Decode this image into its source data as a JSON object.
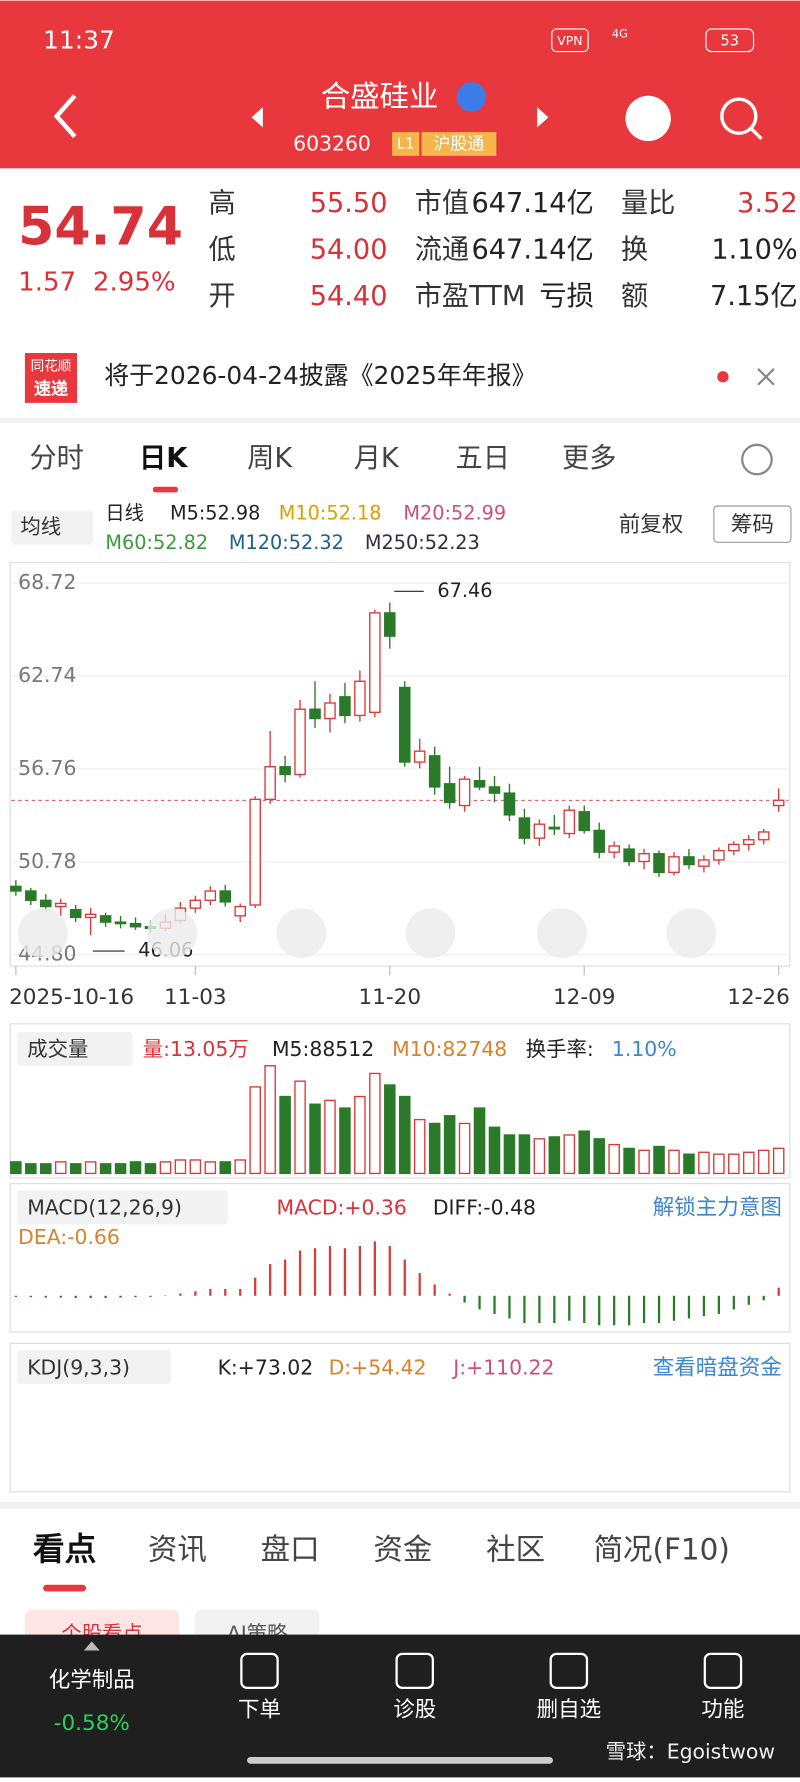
{
  "status": {
    "time": "11:37",
    "vpn": "VPN",
    "network": "4G",
    "battery": "53"
  },
  "header": {
    "title": "合盛硅业",
    "code": "603260",
    "level": "L1",
    "tag": "沪股通"
  },
  "quote": {
    "price": "54.74",
    "change": "1.57",
    "pct": "2.95%",
    "stats": [
      {
        "label": "高",
        "value": "55.50"
      },
      {
        "label": "低",
        "value": "54.00"
      },
      {
        "label": "开",
        "value": "54.40"
      },
      {
        "label": "市值",
        "value": "647.14亿"
      },
      {
        "label": "流通",
        "value": "647.14亿"
      },
      {
        "label": "市盈TTM",
        "value": "亏损"
      },
      {
        "label": "量比",
        "value": "3.52"
      },
      {
        "label": "换",
        "value": "1.10%"
      },
      {
        "label": "额",
        "value": "7.15亿"
      }
    ]
  },
  "banner": {
    "brand_top": "同花顺",
    "brand_bottom": "速递",
    "text": "将于2026-04-24披露《2025年年报》"
  },
  "tabs": [
    "分时",
    "日K",
    "周K",
    "月K",
    "五日",
    "更多"
  ],
  "ma_legend": {
    "selector": "均线",
    "items": [
      "日线",
      "M5:52.98",
      "M10:52.18",
      "M20:52.99",
      "M60:52.82",
      "M120:52.32",
      "M250:52.23"
    ],
    "adjust": "前复权",
    "chips": "筹码"
  },
  "chart_data": {
    "type": "candlestick",
    "ylim": [
      44.8,
      68.72
    ],
    "yticks": [
      {
        "value": 68.72,
        "label": "68.72"
      },
      {
        "value": 62.74,
        "label": "62.74"
      },
      {
        "value": 56.76,
        "label": "56.76"
      },
      {
        "value": 50.78,
        "label": "50.78"
      },
      {
        "value": 44.8,
        "label": "44.80"
      }
    ],
    "x_labels": [
      {
        "index": 0,
        "label": "2025-10-16"
      },
      {
        "index": 12,
        "label": "11-03"
      },
      {
        "index": 25,
        "label": "11-20"
      },
      {
        "index": 38,
        "label": "12-09"
      },
      {
        "index": 51,
        "label": "12-26"
      }
    ],
    "max_label": {
      "index": 25,
      "value": 67.46,
      "label": "67.46"
    },
    "min_label": {
      "index": 5,
      "value": 46.06,
      "label": "46.06"
    },
    "last_price": 54.74,
    "ohlc": [
      [
        49.2,
        49.6,
        48.6,
        48.9
      ],
      [
        48.9,
        49.1,
        48.0,
        48.3
      ],
      [
        48.3,
        48.7,
        47.6,
        47.9
      ],
      [
        47.9,
        48.4,
        47.3,
        48.1
      ],
      [
        47.7,
        48.0,
        46.9,
        47.2
      ],
      [
        47.2,
        47.8,
        46.06,
        47.4
      ],
      [
        47.3,
        47.5,
        46.6,
        46.9
      ],
      [
        46.9,
        47.3,
        46.5,
        46.8
      ],
      [
        46.8,
        47.2,
        46.4,
        46.6
      ],
      [
        46.6,
        47.0,
        46.2,
        46.5
      ],
      [
        46.5,
        47.4,
        46.3,
        46.9
      ],
      [
        47.0,
        48.2,
        46.8,
        47.8
      ],
      [
        47.8,
        48.6,
        47.5,
        48.3
      ],
      [
        48.3,
        49.2,
        48.0,
        48.9
      ],
      [
        48.9,
        49.3,
        47.9,
        48.2
      ],
      [
        47.3,
        48.1,
        46.9,
        47.9
      ],
      [
        48.0,
        55.0,
        47.8,
        54.8
      ],
      [
        54.8,
        59.2,
        54.5,
        56.9
      ],
      [
        56.9,
        57.6,
        55.9,
        56.4
      ],
      [
        56.4,
        61.2,
        56.2,
        60.6
      ],
      [
        60.6,
        62.4,
        59.4,
        60.0
      ],
      [
        60.0,
        61.6,
        59.1,
        61.0
      ],
      [
        61.4,
        62.3,
        59.7,
        60.2
      ],
      [
        60.2,
        63.1,
        59.8,
        62.4
      ],
      [
        60.4,
        67.0,
        60.1,
        66.8
      ],
      [
        66.8,
        67.46,
        64.5,
        65.3
      ],
      [
        62.0,
        62.4,
        56.9,
        57.2
      ],
      [
        57.2,
        58.7,
        56.8,
        57.9
      ],
      [
        57.6,
        58.2,
        55.1,
        55.6
      ],
      [
        55.8,
        56.9,
        54.2,
        54.6
      ],
      [
        54.4,
        56.3,
        54.0,
        56.1
      ],
      [
        56.0,
        56.9,
        55.4,
        55.6
      ],
      [
        55.6,
        56.3,
        54.6,
        55.2
      ],
      [
        55.2,
        55.8,
        53.4,
        53.8
      ],
      [
        53.6,
        54.2,
        51.9,
        52.3
      ],
      [
        52.3,
        53.5,
        51.8,
        53.2
      ],
      [
        53.0,
        53.8,
        52.5,
        52.9
      ],
      [
        52.6,
        54.4,
        52.3,
        54.1
      ],
      [
        54.0,
        54.4,
        52.6,
        52.8
      ],
      [
        52.8,
        53.3,
        51.0,
        51.4
      ],
      [
        51.4,
        52.1,
        51.0,
        51.8
      ],
      [
        51.6,
        51.9,
        50.5,
        50.8
      ],
      [
        50.8,
        51.6,
        50.3,
        51.3
      ],
      [
        51.3,
        51.5,
        49.8,
        50.1
      ],
      [
        50.1,
        51.4,
        49.9,
        51.1
      ],
      [
        51.1,
        51.6,
        50.3,
        50.6
      ],
      [
        50.5,
        51.2,
        50.1,
        50.9
      ],
      [
        50.9,
        51.7,
        50.6,
        51.5
      ],
      [
        51.5,
        52.1,
        51.2,
        51.9
      ],
      [
        51.9,
        52.5,
        51.5,
        52.2
      ],
      [
        52.2,
        52.9,
        51.9,
        52.7
      ],
      [
        54.4,
        55.5,
        54.0,
        54.74
      ]
    ],
    "volume": {
      "selector": "成交量",
      "current": "量:13.05万",
      "m5": "M5:88512",
      "m10": "M10:82748",
      "turnover_label": "换手率:",
      "turnover": "1.10%",
      "values": [
        6,
        5,
        5,
        6,
        5,
        6,
        5,
        5,
        6,
        5,
        6,
        7,
        7,
        6,
        6,
        7,
        45,
        56,
        40,
        48,
        36,
        38,
        34,
        40,
        52,
        46,
        40,
        28,
        26,
        30,
        26,
        34,
        24,
        20,
        20,
        18,
        19,
        20,
        22,
        18,
        15,
        13,
        12,
        14,
        12,
        10,
        11,
        10,
        10,
        11,
        12,
        13.05
      ]
    },
    "macd": {
      "selector": "MACD(12,26,9)",
      "macd": "MACD:+0.36",
      "diff": "DIFF:-0.48",
      "dea": "DEA:-0.66",
      "link": "解锁主力意图",
      "values": [
        -0.05,
        -0.06,
        -0.08,
        -0.08,
        -0.1,
        -0.1,
        -0.1,
        -0.08,
        -0.06,
        -0.05,
        0.02,
        0.1,
        0.2,
        0.3,
        0.3,
        0.3,
        0.8,
        1.4,
        1.6,
        2.0,
        2.1,
        2.2,
        2.1,
        2.2,
        2.4,
        2.2,
        1.6,
        1.0,
        0.5,
        0.1,
        -0.3,
        -0.6,
        -0.8,
        -1.0,
        -1.2,
        -1.2,
        -1.2,
        -1.1,
        -1.2,
        -1.3,
        -1.3,
        -1.3,
        -1.2,
        -1.2,
        -1.1,
        -1.0,
        -0.9,
        -0.8,
        -0.6,
        -0.4,
        -0.2,
        0.36
      ]
    },
    "kdj": {
      "selector": "KDJ(9,3,3)",
      "k": "K:+73.02",
      "d": "D:+54.42",
      "j": "J:+110.22",
      "link": "查看暗盘资金"
    }
  },
  "bottom_tabs": [
    "看点",
    "资讯",
    "盘口",
    "资金",
    "社区",
    "简况(F10)"
  ],
  "chips": [
    "个股看点",
    "AI策略"
  ],
  "footer": {
    "sector": "化学制品",
    "sector_change": "-0.58%",
    "buttons": [
      "下单",
      "诊股",
      "删自选",
      "功能"
    ],
    "watermark": "雪球：Egoistwow"
  }
}
